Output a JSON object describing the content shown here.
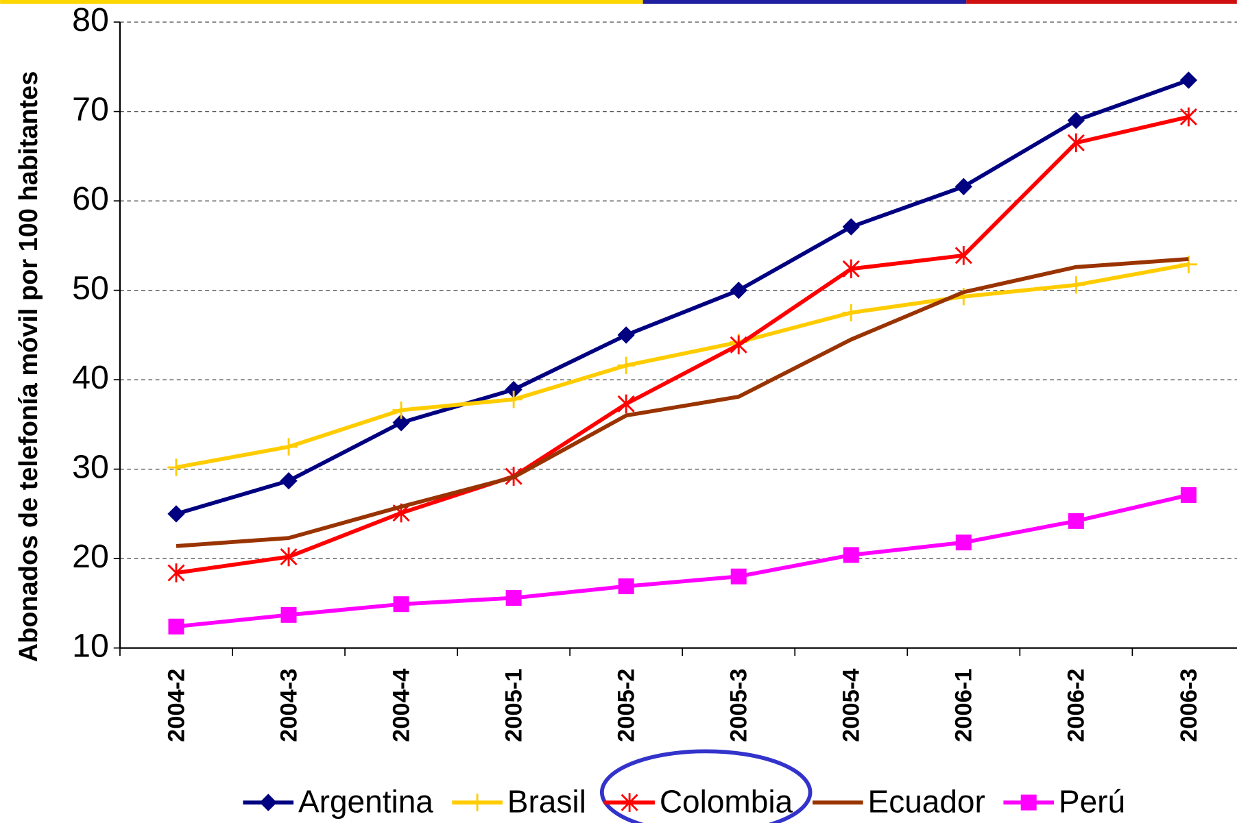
{
  "chart_data": {
    "type": "line",
    "y_label": "Abonados de telefonía móvil por 100 habitantes",
    "categories": [
      "2004-2",
      "2004-3",
      "2004-4",
      "2005-1",
      "2005-2",
      "2005-3",
      "2005-4",
      "2006-1",
      "2006-2",
      "2006-3"
    ],
    "series": [
      {
        "name": "Argentina",
        "color": "#000080",
        "marker": "diamond",
        "values": [
          25,
          28.7,
          35.2,
          38.9,
          45,
          50,
          57.1,
          61.6,
          69,
          73.5
        ]
      },
      {
        "name": "Brasil",
        "color": "#ffcc00",
        "marker": "plus",
        "values": [
          30.2,
          32.5,
          36.6,
          37.8,
          41.6,
          44.2,
          47.5,
          49.3,
          50.6,
          52.9
        ]
      },
      {
        "name": "Colombia",
        "color": "#ff0000",
        "marker": "asterisk",
        "values": [
          18.4,
          20.2,
          25.1,
          29.2,
          37.3,
          43.9,
          52.4,
          53.9,
          66.5,
          69.4
        ]
      },
      {
        "name": "Ecuador",
        "color": "#993300",
        "marker": "none",
        "values": [
          21.4,
          22.3,
          25.8,
          29.1,
          36,
          38.1,
          44.5,
          49.8,
          52.6,
          53.5
        ]
      },
      {
        "name": "Perú",
        "color": "#ff00ff",
        "marker": "square",
        "values": [
          12.4,
          13.7,
          14.9,
          15.6,
          16.9,
          18,
          20.4,
          21.8,
          24.2,
          27.1
        ]
      }
    ],
    "ylim": [
      10,
      80
    ],
    "yticks": [
      10,
      20,
      30,
      40,
      50,
      60,
      70,
      80
    ],
    "grid": true,
    "legend": "bottom"
  }
}
